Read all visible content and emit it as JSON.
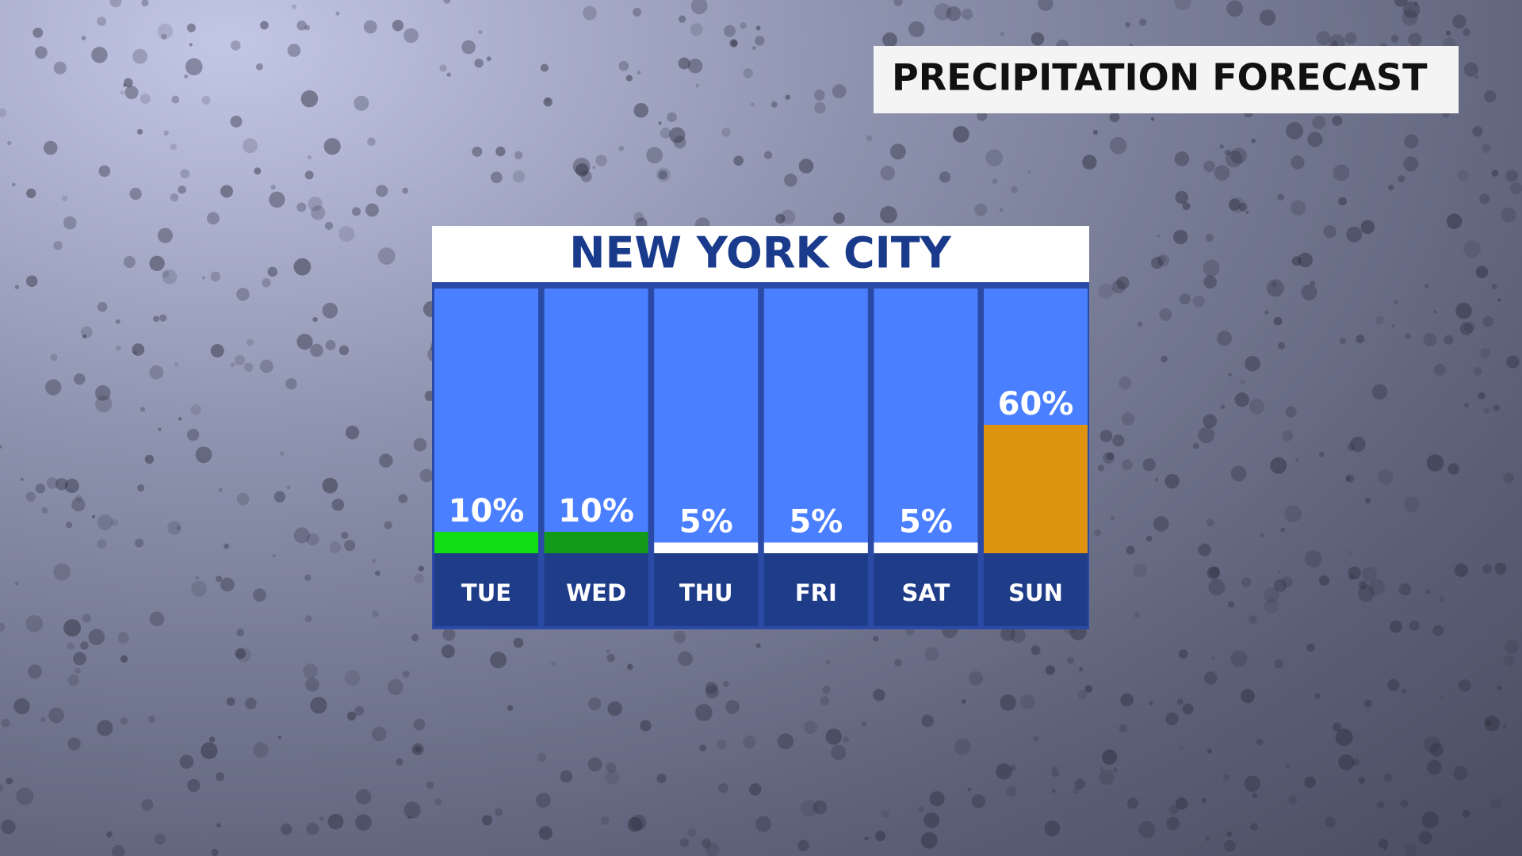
{
  "chart_data": {
    "type": "bar",
    "title": "PRECIPITATION FORECAST",
    "subtitle": "NEW YORK CITY",
    "categories": [
      "TUE",
      "WED",
      "THU",
      "FRI",
      "SAT",
      "SUN"
    ],
    "values": [
      10,
      10,
      5,
      5,
      5,
      60
    ],
    "value_labels": [
      "10%",
      "10%",
      "5%",
      "5%",
      "5%",
      "60%"
    ],
    "colors": [
      "#12dd12",
      "#129a18",
      "#ffffff",
      "#ffffff",
      "#ffffff",
      "#dd930f"
    ]
  }
}
